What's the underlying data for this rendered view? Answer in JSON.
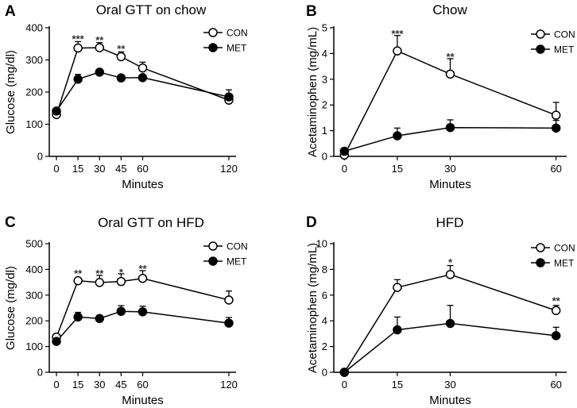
{
  "chart_data": [
    {
      "id": "A",
      "type": "line",
      "panel_label": "A",
      "title": "Oral GTT on chow",
      "xlabel": "Minutes",
      "ylabel": "Glucose (mg/dl)",
      "xlim": [
        -5,
        125
      ],
      "ylim": [
        0,
        400
      ],
      "xticks": [
        0,
        15,
        30,
        45,
        60,
        120
      ],
      "yticks": [
        0,
        100,
        200,
        300,
        400
      ],
      "legend_position": "top-right",
      "series": [
        {
          "name": "CON",
          "marker": "open-circle",
          "x": [
            0,
            15,
            30,
            45,
            60,
            120
          ],
          "values": [
            130,
            337,
            338,
            310,
            275,
            175
          ],
          "errors": [
            8,
            20,
            16,
            15,
            18,
            8
          ]
        },
        {
          "name": "MET",
          "marker": "filled-circle",
          "x": [
            0,
            15,
            30,
            45,
            60,
            120
          ],
          "values": [
            141,
            240,
            262,
            244,
            245,
            185
          ],
          "errors": [
            8,
            15,
            10,
            12,
            12,
            22
          ]
        }
      ],
      "annotations": [
        {
          "x": 15,
          "y": 372,
          "text": "***"
        },
        {
          "x": 30,
          "y": 368,
          "text": "**"
        },
        {
          "x": 45,
          "y": 341,
          "text": "**"
        }
      ]
    },
    {
      "id": "B",
      "type": "line",
      "panel_label": "B",
      "title": "Chow",
      "xlabel": "Minutes",
      "ylabel": "Acetaminophen (mg/mL)",
      "xlim": [
        -3,
        63
      ],
      "ylim": [
        0,
        5
      ],
      "xticks": [
        0,
        15,
        30,
        60
      ],
      "yticks": [
        0,
        1,
        2,
        3,
        4,
        5
      ],
      "legend_position": "top-right",
      "series": [
        {
          "name": "CON",
          "marker": "open-circle",
          "x": [
            0,
            15,
            30,
            60
          ],
          "values": [
            0.05,
            4.1,
            3.2,
            1.6
          ],
          "errors": [
            0.05,
            0.6,
            0.6,
            0.5
          ]
        },
        {
          "name": "MET",
          "marker": "filled-circle",
          "x": [
            0,
            15,
            30,
            60
          ],
          "values": [
            0.2,
            0.8,
            1.12,
            1.1
          ],
          "errors": [
            0.05,
            0.3,
            0.3,
            0.3
          ]
        }
      ],
      "annotations": [
        {
          "x": 15,
          "y": 4.85,
          "text": "***"
        },
        {
          "x": 30,
          "y": 3.95,
          "text": "**"
        }
      ]
    },
    {
      "id": "C",
      "type": "line",
      "panel_label": "C",
      "title": "Oral GTT on HFD",
      "xlabel": "Minutes",
      "ylabel": "Glucose (mg/dl)",
      "xlim": [
        -5,
        125
      ],
      "ylim": [
        0,
        500
      ],
      "xticks": [
        0,
        15,
        30,
        45,
        60,
        120
      ],
      "yticks": [
        0,
        100,
        200,
        300,
        400,
        500
      ],
      "legend_position": "top-right",
      "series": [
        {
          "name": "CON",
          "marker": "open-circle",
          "x": [
            0,
            15,
            30,
            45,
            60,
            120
          ],
          "values": [
            137,
            356,
            349,
            353,
            365,
            281
          ],
          "errors": [
            8,
            8,
            28,
            30,
            30,
            35
          ]
        },
        {
          "name": "MET",
          "marker": "filled-circle",
          "x": [
            0,
            15,
            30,
            45,
            60,
            120
          ],
          "values": [
            120,
            215,
            209,
            237,
            235,
            191
          ],
          "errors": [
            8,
            18,
            14,
            22,
            22,
            22
          ]
        }
      ],
      "annotations": [
        {
          "x": 15,
          "y": 392,
          "text": "**"
        },
        {
          "x": 30,
          "y": 392,
          "text": "**"
        },
        {
          "x": 45,
          "y": 397,
          "text": "*"
        },
        {
          "x": 60,
          "y": 410,
          "text": "**"
        }
      ]
    },
    {
      "id": "D",
      "type": "line",
      "panel_label": "D",
      "title": "HFD",
      "xlabel": "Minutes",
      "ylabel": "Acetaminophen (mg/mL)",
      "xlim": [
        -3,
        63
      ],
      "ylim": [
        0,
        10
      ],
      "xticks": [
        0,
        15,
        30,
        60
      ],
      "yticks": [
        0,
        2,
        4,
        6,
        8,
        10
      ],
      "legend_position": "top-right",
      "series": [
        {
          "name": "CON",
          "marker": "open-circle",
          "x": [
            0,
            15,
            30,
            60
          ],
          "values": [
            0,
            6.6,
            7.6,
            4.8
          ],
          "errors": [
            0.05,
            0.6,
            0.7,
            0.4
          ]
        },
        {
          "name": "MET",
          "marker": "filled-circle",
          "x": [
            0,
            15,
            30,
            60
          ],
          "values": [
            0,
            3.3,
            3.8,
            2.85
          ],
          "errors": [
            0.05,
            1.0,
            1.4,
            0.65
          ]
        }
      ],
      "annotations": [
        {
          "x": 30,
          "y": 8.7,
          "text": "*"
        },
        {
          "x": 60,
          "y": 5.7,
          "text": "**"
        }
      ]
    }
  ]
}
